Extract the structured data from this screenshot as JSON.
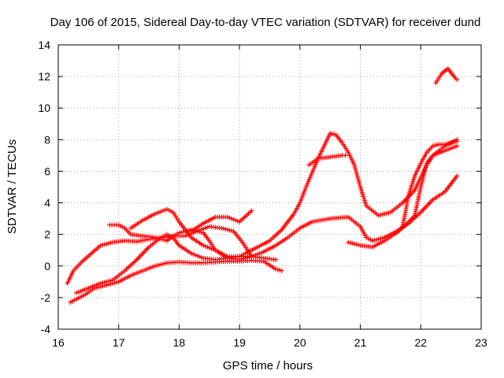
{
  "chart_data": {
    "type": "scatter",
    "title": "Day 106 of 2015, Sidereal Day-to-day VTEC variation (SDTVAR) for receiver dund",
    "xlabel": "GPS time / hours",
    "ylabel": "SDTVAR / TECUs",
    "xlim": [
      16,
      23
    ],
    "ylim": [
      -4,
      14
    ],
    "xticks": [
      "16",
      "17",
      "18",
      "19",
      "20",
      "21",
      "22",
      "23"
    ],
    "yticks": [
      "-4",
      "-2",
      "0",
      "2",
      "4",
      "6",
      "8",
      "10",
      "12",
      "14"
    ],
    "grid": true,
    "marker": "+",
    "series_color": "#ff0000",
    "series": [
      {
        "name": "track-a",
        "x": [
          16.15,
          16.25,
          16.4,
          16.55,
          16.7,
          16.9,
          17.1,
          17.3,
          17.5,
          17.7,
          17.9,
          18.1,
          18.3,
          18.5,
          18.7,
          18.9,
          19.05,
          19.2
        ],
        "y": [
          -1.1,
          -0.3,
          0.3,
          0.8,
          1.3,
          1.5,
          1.6,
          1.55,
          1.7,
          1.8,
          1.9,
          1.9,
          2.2,
          2.5,
          2.4,
          2.2,
          1.5,
          0.6
        ]
      },
      {
        "name": "track-b",
        "x": [
          16.2,
          16.3,
          16.45,
          16.6,
          16.8,
          17.0,
          17.2,
          17.4,
          17.6,
          17.8,
          18.0,
          18.2,
          18.4,
          18.6,
          18.8,
          19.0,
          19.2,
          19.4,
          19.6,
          19.7
        ],
        "y": [
          -2.3,
          -2.1,
          -1.8,
          -1.4,
          -1.2,
          -1.0,
          -0.6,
          -0.3,
          0.0,
          0.2,
          0.25,
          0.2,
          0.2,
          0.25,
          0.3,
          0.3,
          0.35,
          0.3,
          -0.2,
          -0.3
        ]
      },
      {
        "name": "track-c",
        "x": [
          16.3,
          16.5,
          16.7,
          16.9,
          17.1,
          17.3,
          17.5,
          17.7,
          17.8,
          17.9,
          18.0,
          18.2,
          18.4,
          18.6,
          18.8,
          19.0,
          19.2,
          19.4,
          19.6
        ],
        "y": [
          -1.7,
          -1.4,
          -1.1,
          -0.9,
          -0.3,
          0.4,
          1.2,
          1.8,
          2.0,
          1.8,
          1.3,
          0.8,
          0.5,
          0.4,
          0.5,
          0.6,
          0.6,
          0.5,
          0.4
        ]
      },
      {
        "name": "track-d",
        "x": [
          16.85,
          17.0,
          17.1,
          17.2,
          17.4,
          17.6,
          17.8,
          17.9,
          18.0,
          18.2,
          18.4,
          18.5,
          18.6,
          18.8,
          19.0,
          19.1,
          19.2,
          19.4,
          19.6,
          19.8,
          20.0,
          20.2,
          20.5,
          20.8,
          21.0,
          21.1,
          21.2,
          21.4,
          21.6,
          21.8,
          22.0,
          22.2,
          22.4,
          22.6
        ],
        "y": [
          2.6,
          2.6,
          2.4,
          2.0,
          1.9,
          1.8,
          1.6,
          1.9,
          2.1,
          2.3,
          2.1,
          1.6,
          1.0,
          0.5,
          0.4,
          0.5,
          0.6,
          0.9,
          1.3,
          1.8,
          2.4,
          2.8,
          3.0,
          3.1,
          2.5,
          1.8,
          1.6,
          1.8,
          2.2,
          2.7,
          3.4,
          4.2,
          4.7,
          5.7
        ]
      },
      {
        "name": "track-e",
        "x": [
          17.2,
          17.4,
          17.6,
          17.8,
          17.9,
          18.0,
          18.2,
          18.4,
          18.6,
          18.8,
          19.0,
          19.1,
          19.3,
          19.5,
          19.7,
          19.9,
          20.0,
          20.1,
          20.3,
          20.5,
          20.6,
          20.7,
          20.8,
          20.9,
          21.0,
          21.1,
          21.3,
          21.5,
          21.7,
          21.9,
          22.0,
          22.1,
          22.2,
          22.4,
          22.6
        ],
        "y": [
          2.4,
          2.9,
          3.3,
          3.6,
          3.4,
          2.8,
          1.8,
          1.3,
          1.0,
          0.6,
          0.6,
          0.8,
          1.2,
          1.6,
          2.3,
          3.3,
          4.0,
          5.0,
          6.8,
          8.4,
          8.3,
          7.8,
          7.2,
          6.4,
          5.0,
          3.8,
          3.2,
          3.4,
          4.0,
          4.8,
          5.6,
          6.4,
          7.0,
          7.3,
          7.6
        ]
      },
      {
        "name": "track-f",
        "x": [
          18.2,
          18.4,
          18.6,
          18.8,
          19.0,
          19.2
        ],
        "y": [
          2.2,
          2.7,
          3.1,
          3.1,
          2.8,
          3.5
        ]
      },
      {
        "name": "track-g",
        "x": [
          20.15,
          20.3,
          20.5,
          20.7,
          20.75
        ],
        "y": [
          6.4,
          6.8,
          6.9,
          7.0,
          7.0
        ]
      },
      {
        "name": "track-h",
        "x": [
          20.8,
          21.0,
          21.2,
          21.4,
          21.6,
          21.75,
          21.9,
          22.0,
          22.1,
          22.2,
          22.4,
          22.6
        ],
        "y": [
          1.5,
          1.3,
          1.2,
          1.6,
          2.1,
          2.6,
          3.2,
          5.0,
          6.5,
          7.0,
          7.6,
          8.0
        ]
      },
      {
        "name": "track-i",
        "x": [
          21.7,
          21.8,
          21.9,
          22.0,
          22.1,
          22.2,
          22.3,
          22.4,
          22.5,
          22.6
        ],
        "y": [
          2.5,
          4.5,
          5.7,
          6.5,
          7.2,
          7.6,
          7.7,
          7.7,
          7.8,
          7.9
        ]
      },
      {
        "name": "track-j",
        "x": [
          22.25,
          22.35,
          22.45,
          22.55,
          22.6
        ],
        "y": [
          11.6,
          12.2,
          12.5,
          12.0,
          11.8
        ]
      }
    ]
  }
}
